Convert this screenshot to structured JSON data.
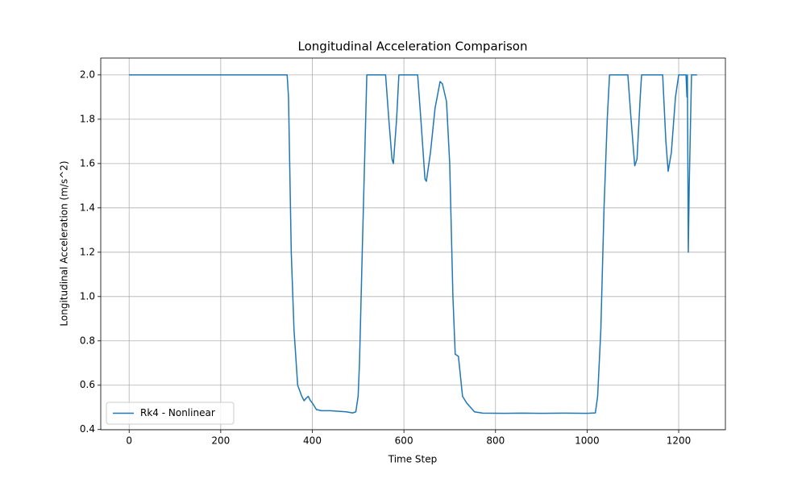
{
  "chart_data": {
    "type": "line",
    "title": "Longitudinal Acceleration Comparison",
    "x_label": "Time Step",
    "y_label": "Longitudinal Acceleration (m/s^2)",
    "xlim": [
      -62,
      1302
    ],
    "ylim": [
      0.399,
      2.076
    ],
    "xticks": [
      0,
      200,
      400,
      600,
      800,
      1000,
      1200
    ],
    "yticks": [
      0.4,
      0.6,
      0.8,
      {
        "value": 1,
        "label": "1.0"
      },
      1.2,
      1.4,
      1.6,
      1.8,
      {
        "value": 2,
        "label": "2.0"
      }
    ],
    "grid": true,
    "legend_position": "lower-left",
    "series": [
      {
        "name": "Rk4 - Nonlinear",
        "color": "#1f77b4",
        "x": [
          0,
          345,
          348,
          354,
          360,
          368,
          377,
          382,
          386,
          391,
          396,
          400,
          409,
          420,
          439,
          474,
          488,
          495,
          500,
          503,
          509,
          514,
          519,
          560,
          567,
          574,
          577,
          584,
          589,
          630,
          637,
          646,
          649,
          658,
          668,
          679,
          684,
          693,
          700,
          707,
          712,
          719,
          728,
          737,
          754,
          772,
          820,
          860,
          900,
          950,
          1000,
          1018,
          1023,
          1030,
          1037,
          1044,
          1049,
          1089,
          1096,
          1104,
          1109,
          1116,
          1119,
          1165,
          1172,
          1177,
          1184,
          1193,
          1200,
          1216,
          1218,
          1219,
          1221,
          1223,
          1228,
          1240
        ],
        "values": [
          2.0,
          2.0,
          1.9,
          1.2,
          0.85,
          0.6,
          0.55,
          0.53,
          0.54,
          0.55,
          0.53,
          0.52,
          0.49,
          0.485,
          0.485,
          0.48,
          0.475,
          0.48,
          0.55,
          0.7,
          1.2,
          1.6,
          2.0,
          2.0,
          1.8,
          1.62,
          1.6,
          1.8,
          2.0,
          2.0,
          1.8,
          1.53,
          1.52,
          1.65,
          1.85,
          1.97,
          1.96,
          1.88,
          1.6,
          1.0,
          0.74,
          0.73,
          0.55,
          0.52,
          0.48,
          0.474,
          0.473,
          0.474,
          0.473,
          0.474,
          0.473,
          0.475,
          0.55,
          0.85,
          1.4,
          1.8,
          2.0,
          2.0,
          1.8,
          1.59,
          1.62,
          1.9,
          2.0,
          2.0,
          1.7,
          1.565,
          1.65,
          1.9,
          2.0,
          2.0,
          1.9,
          2.0,
          1.2,
          1.5,
          2.0,
          2.0
        ]
      }
    ]
  }
}
